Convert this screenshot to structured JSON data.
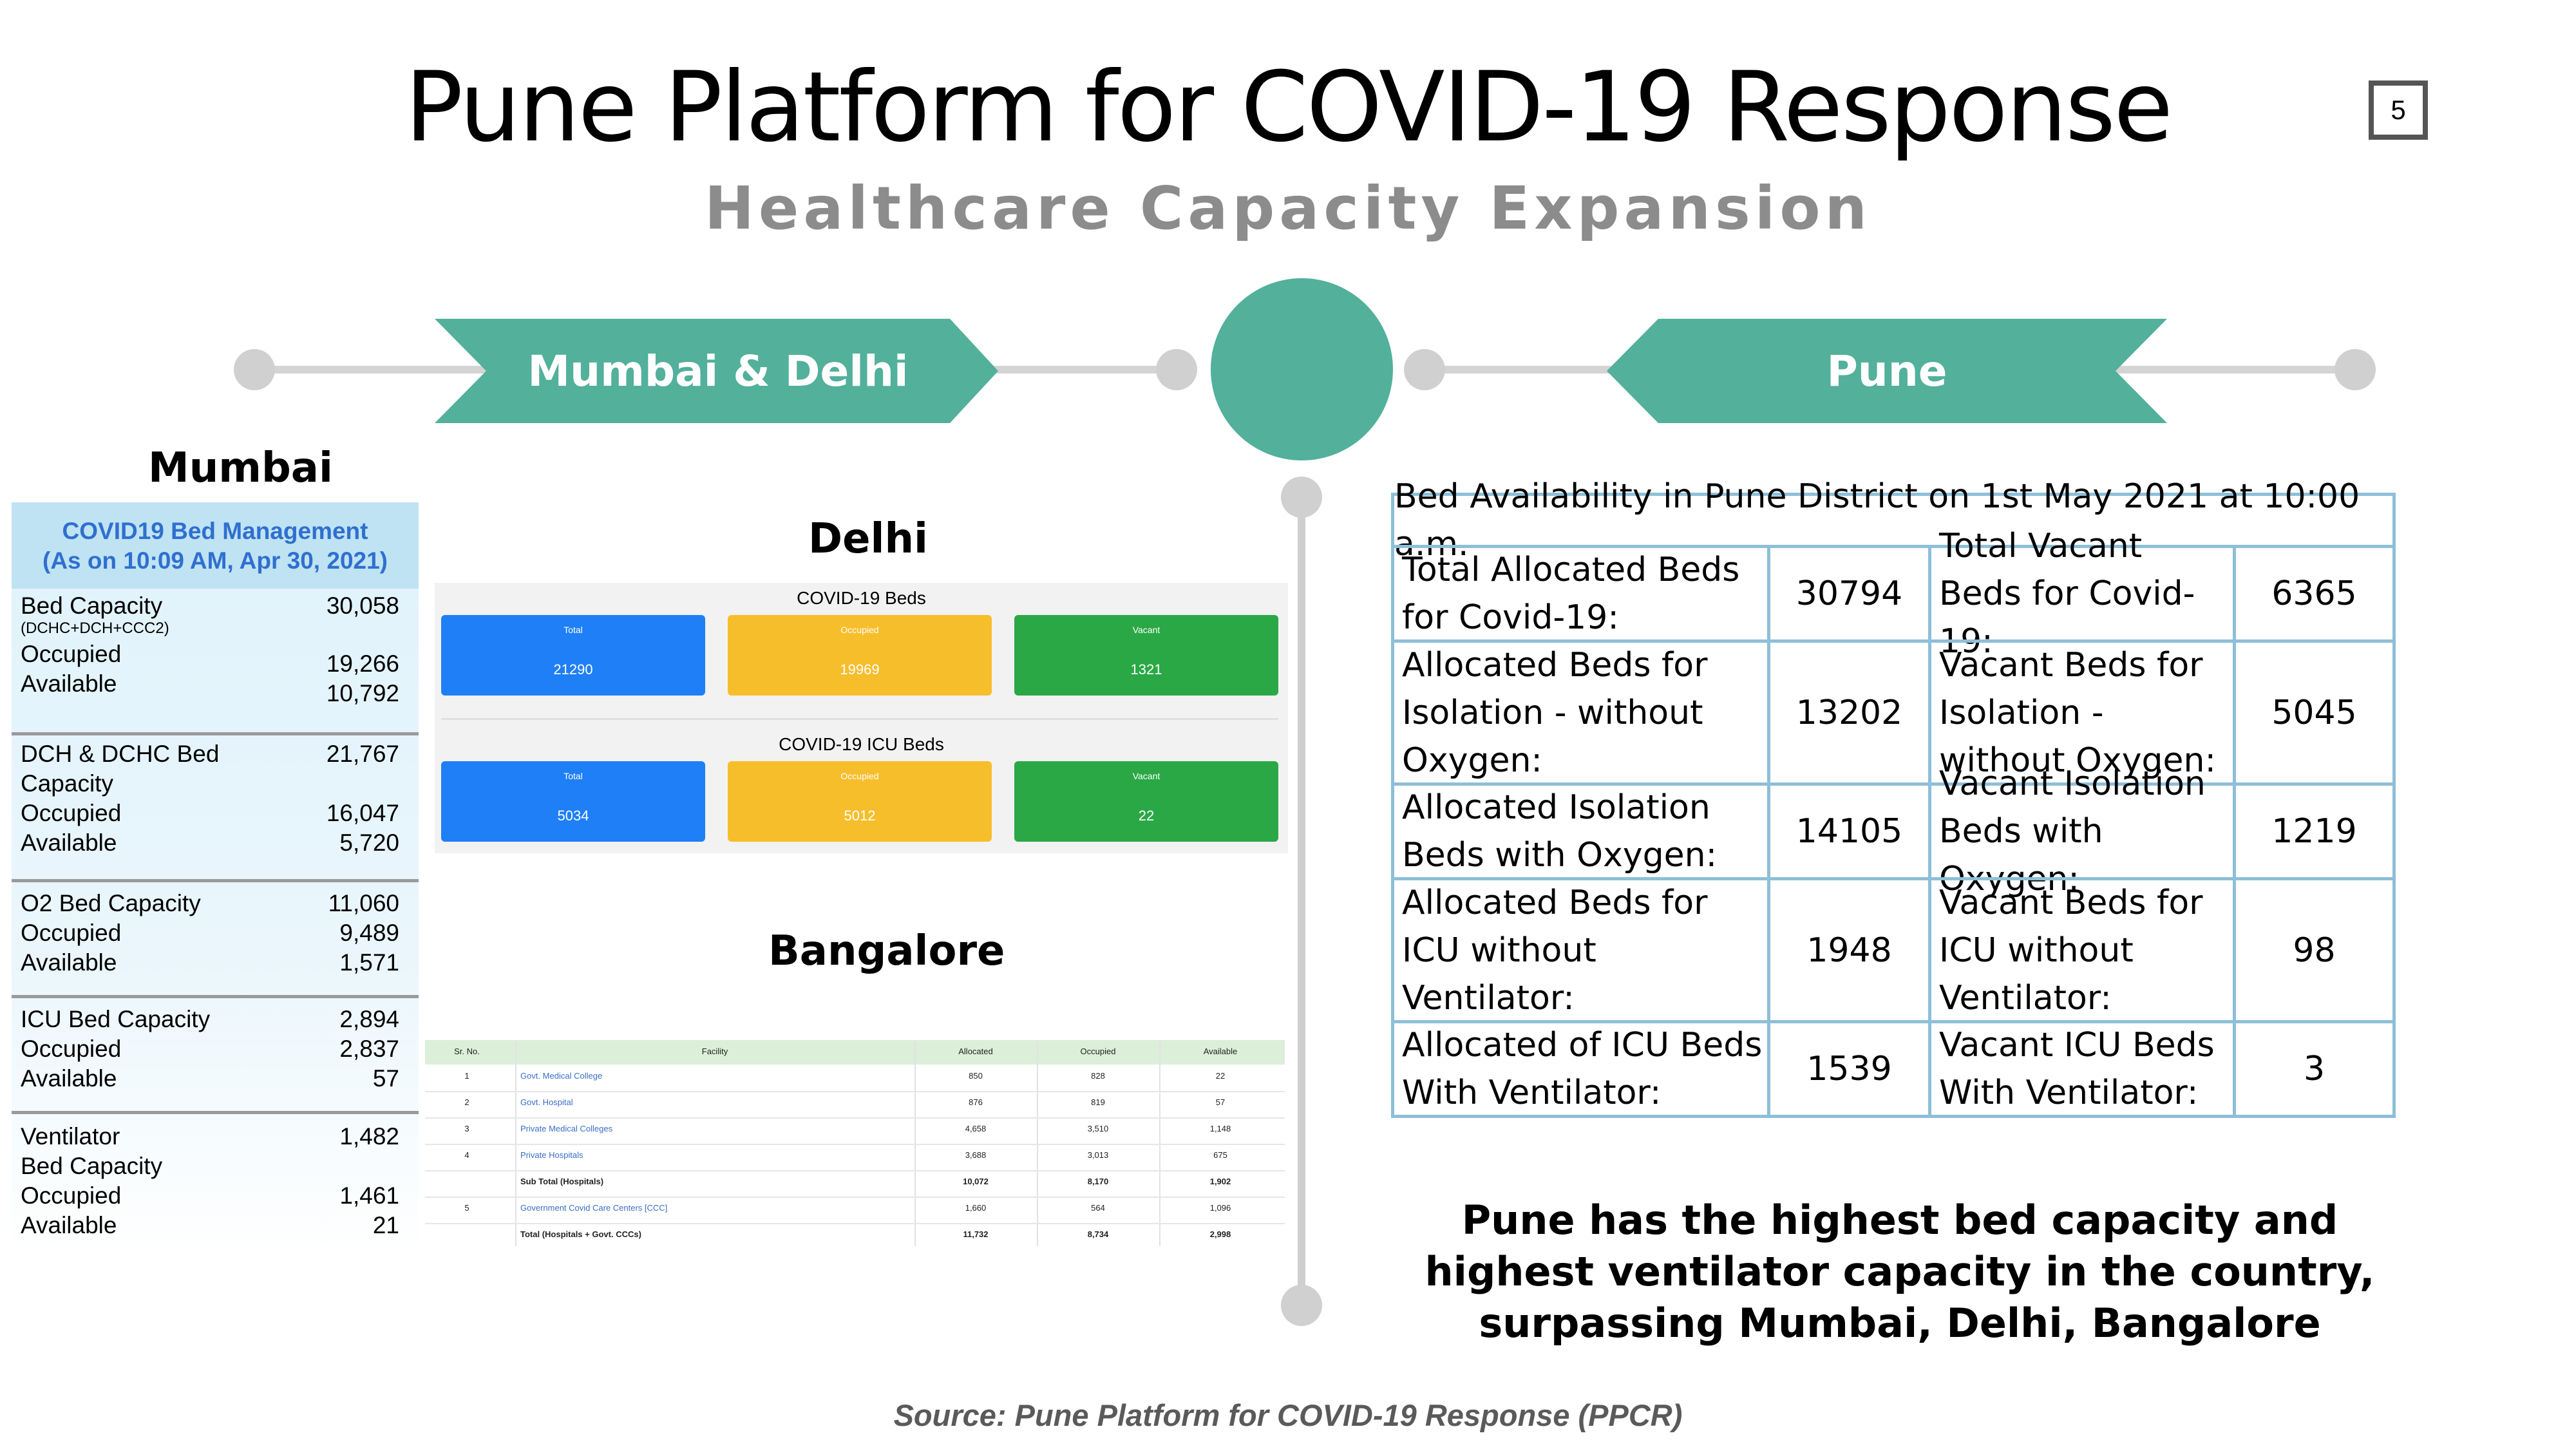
{
  "header": {
    "title": "Pune Platform for COVID-19 Response",
    "subtitle": "Healthcare Capacity Expansion",
    "page_number": "5"
  },
  "colors": {
    "accent": "#52b09b",
    "timeline": "#d0d0d0",
    "table_border": "#8dbfd8"
  },
  "timeline": {
    "left_banner": "Mumbai & Delhi",
    "right_banner": "Pune"
  },
  "mumbai": {
    "heading": "Mumbai",
    "panel_title_1": "COVID19 Bed Management",
    "panel_title_2": "(As on 10:09 AM, Apr 30, 2021)",
    "groups": [
      {
        "rows": [
          {
            "label": "Bed Capacity",
            "value": "30,058"
          },
          {
            "label": "(DCHC+DCH+CCC2)",
            "value": ""
          },
          {
            "label": "Occupied",
            "value": "19,266"
          },
          {
            "label": "Available",
            "value": "10,792"
          }
        ]
      },
      {
        "rows": [
          {
            "label": "DCH & DCHC Bed",
            "value": "21,767"
          },
          {
            "label": "Capacity",
            "value": ""
          },
          {
            "label": "Occupied",
            "value": "16,047"
          },
          {
            "label": "Available",
            "value": "5,720"
          }
        ]
      },
      {
        "rows": [
          {
            "label": "O2 Bed Capacity",
            "value": "11,060"
          },
          {
            "label": "Occupied",
            "value": "9,489"
          },
          {
            "label": "Available",
            "value": "1,571"
          }
        ]
      },
      {
        "rows": [
          {
            "label": "ICU Bed Capacity",
            "value": "2,894"
          },
          {
            "label": "Occupied",
            "value": "2,837"
          },
          {
            "label": "Available",
            "value": "57"
          }
        ]
      },
      {
        "rows": [
          {
            "label": "Ventilator",
            "value": "1,482"
          },
          {
            "label": "Bed Capacity",
            "value": ""
          },
          {
            "label": "Occupied",
            "value": "1,461"
          },
          {
            "label": "Available",
            "value": "21"
          }
        ]
      }
    ]
  },
  "delhi": {
    "heading": "Delhi",
    "beds_title": "COVID-19 Beds",
    "icu_title": "COVID-19 ICU Beds",
    "labels": {
      "total": "Total",
      "occupied": "Occupied",
      "vacant": "Vacant"
    },
    "beds": {
      "total": "21290",
      "occupied": "19969",
      "vacant": "1321"
    },
    "icu": {
      "total": "5034",
      "occupied": "5012",
      "vacant": "22"
    }
  },
  "bangalore": {
    "heading": "Bangalore",
    "columns": [
      "Sr. No.",
      "Facility",
      "Allocated",
      "Occupied",
      "Available"
    ],
    "rows": [
      [
        "1",
        "Govt. Medical College",
        "850",
        "828",
        "22"
      ],
      [
        "2",
        "Govt. Hospital",
        "876",
        "819",
        "57"
      ],
      [
        "3",
        "Private Medical Colleges",
        "4,658",
        "3,510",
        "1,148"
      ],
      [
        "4",
        "Private Hospitals",
        "3,688",
        "3,013",
        "675"
      ],
      [
        "",
        "Sub Total (Hospitals)",
        "10,072",
        "8,170",
        "1,902"
      ],
      [
        "5",
        "Government Covid Care Centers [CCC]",
        "1,660",
        "564",
        "1,096"
      ],
      [
        "",
        "Total (Hospitals + Govt. CCCs)",
        "11,732",
        "8,734",
        "2,998"
      ]
    ]
  },
  "pune": {
    "table_title": "Bed Availability in Pune District on 1st May 2021 at 10:00 a.m.",
    "rows": [
      {
        "alloc_label": "Total Allocated Beds for Covid-19:",
        "alloc_value": "30794",
        "vacant_label": "Total Vacant Beds for Covid-19:",
        "vacant_value": "6365"
      },
      {
        "alloc_label": "Allocated Beds for Isolation - without Oxygen:",
        "alloc_value": "13202",
        "vacant_label": "Vacant Beds for Isolation - without Oxygen:",
        "vacant_value": "5045"
      },
      {
        "alloc_label": "Allocated Isolation Beds with Oxygen:",
        "alloc_value": "14105",
        "vacant_label": "Vacant Isolation Beds with Oxygen:",
        "vacant_value": "1219"
      },
      {
        "alloc_label": "Allocated Beds for ICU without Ventilator:",
        "alloc_value": "1948",
        "vacant_label": "Vacant Beds for ICU without Ventilator:",
        "vacant_value": "98"
      },
      {
        "alloc_label": "Allocated of ICU Beds With Ventilator:",
        "alloc_value": "1539",
        "vacant_label": "Vacant ICU Beds With Ventilator:",
        "vacant_value": "3"
      }
    ],
    "conclusion": "Pune has the highest bed capacity and highest ventilator capacity in the country, surpassing Mumbai, Delhi, Bangalore"
  },
  "footer": {
    "source": "Source: Pune Platform for COVID-19 Response (PPCR)"
  }
}
